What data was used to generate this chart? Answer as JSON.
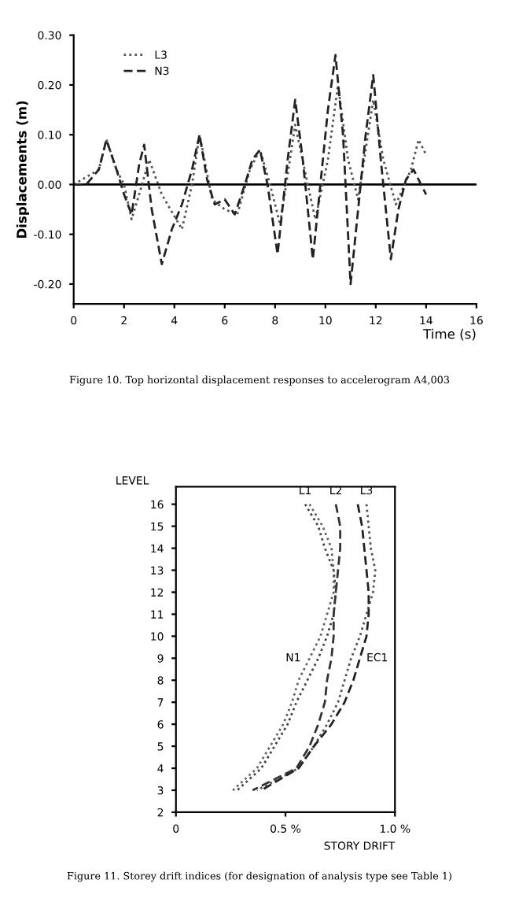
{
  "chart_data": [
    {
      "type": "line",
      "ylabel": "Displacements (m)",
      "xlabel": "Time (s)",
      "xlim": [
        0,
        16
      ],
      "xticks": [
        0,
        2,
        4,
        6,
        8,
        10,
        12,
        14,
        16
      ],
      "ylim": [
        -0.24,
        0.3
      ],
      "yticks": [
        {
          "value": -0.2,
          "label": "-0.20"
        },
        {
          "value": -0.1,
          "label": "-0.10"
        },
        {
          "value": 0,
          "label": "0.00"
        },
        {
          "value": 0.1,
          "label": "0.10"
        },
        {
          "value": 0.2,
          "label": "0.20"
        },
        {
          "value": 0.3,
          "label": "0.30"
        }
      ],
      "legend": "top left",
      "grid": false,
      "ref_lines": [
        {
          "axis": "y",
          "value": 0,
          "color": "#000000",
          "line_style": "solid"
        }
      ],
      "annotations": [
        "Figure 10. Top horizontal displacement responses to accelerogram A4,003"
      ],
      "series": [
        {
          "name": "L3",
          "color": "#555555",
          "line_style": "dotted",
          "x": [
            0,
            1,
            1.3,
            1.7,
            2,
            2.3,
            2.6,
            3,
            3.5,
            4.3,
            4.7,
            5,
            5.5,
            6,
            6.5,
            7,
            7.4,
            7.8,
            8.2,
            8.8,
            9.3,
            9.6,
            10.1,
            10.5,
            10.9,
            11.3,
            11.9,
            12.3,
            12.8,
            13.4,
            13.7,
            14
          ],
          "values": [
            0,
            0.03,
            0.09,
            0.03,
            0,
            -0.07,
            -0.02,
            0.05,
            -0.02,
            -0.09,
            0,
            0.1,
            -0.03,
            -0.05,
            -0.06,
            0.03,
            0.07,
            0,
            -0.08,
            0.12,
            0,
            -0.07,
            0.05,
            0.2,
            0.05,
            -0.03,
            0.17,
            0.05,
            -0.04,
            0.03,
            0.09,
            0.06
          ]
        },
        {
          "name": "N3",
          "color": "#222222",
          "line_style": "dashed",
          "x": [
            0,
            0.5,
            1,
            1.3,
            1.7,
            2,
            2.3,
            2.6,
            2.8,
            3.1,
            3.5,
            3.9,
            4.3,
            4.7,
            5,
            5.3,
            5.6,
            6,
            6.4,
            6.8,
            7.1,
            7.4,
            7.7,
            8.1,
            8.5,
            8.8,
            9.1,
            9.5,
            9.8,
            10.1,
            10.4,
            10.7,
            11,
            11.3,
            11.6,
            11.9,
            12.2,
            12.6,
            12.9,
            13.2,
            13.5,
            13.8,
            14
          ],
          "values": [
            0,
            0,
            0.03,
            0.09,
            0.03,
            -0.02,
            -0.06,
            0.04,
            0.08,
            -0.05,
            -0.16,
            -0.09,
            -0.04,
            0.03,
            0.1,
            0.01,
            -0.04,
            -0.03,
            -0.06,
            0,
            0.05,
            0.07,
            0,
            -0.14,
            0.05,
            0.17,
            0.05,
            -0.15,
            0,
            0.15,
            0.26,
            0.1,
            -0.2,
            -0.05,
            0.1,
            0.22,
            0.05,
            -0.15,
            -0.05,
            0.01,
            0.03,
            0,
            -0.02
          ]
        }
      ]
    },
    {
      "type": "line",
      "ylabel": "LEVEL",
      "xlabel": "STORY DRIFT",
      "xlim": [
        0,
        1.0
      ],
      "xticks": [
        0,
        {
          "value": 0.5,
          "label": "0.5 %"
        },
        {
          "value": 1.0,
          "label": "1.0 %"
        }
      ],
      "ylim": [
        2,
        16.8
      ],
      "yticks": [
        2,
        3,
        4,
        5,
        6,
        7,
        8,
        9,
        10,
        11,
        12,
        13,
        14,
        15,
        16
      ],
      "legend": false,
      "grid": false,
      "annotations": [
        "Figure 11. Storey drift indices (for designation of analysis type see Table 1)"
      ],
      "series": [
        {
          "name": "L1",
          "color": "#444444",
          "line_style": "dotted",
          "x": [
            0.59,
            0.65,
            0.68,
            0.72,
            0.73,
            0.72,
            0.69,
            0.65,
            0.6,
            0.55,
            0.51,
            0.45,
            0.39,
            0.28
          ],
          "values": [
            16,
            15,
            14,
            13,
            12,
            11,
            10,
            9,
            8,
            7,
            6,
            5,
            4,
            3
          ]
        },
        {
          "name": "L2",
          "color": "#333333",
          "line_style": "dashed",
          "x": [
            0.73,
            0.75,
            0.75,
            0.74,
            0.73,
            0.72,
            0.72,
            0.71,
            0.69,
            0.68,
            0.65,
            0.61,
            0.55,
            0.35
          ],
          "values": [
            16,
            15,
            14,
            13,
            12,
            11,
            10,
            9,
            8,
            7,
            6,
            5,
            4,
            3
          ]
        },
        {
          "name": "L3",
          "color": "#555555",
          "line_style": "dotted",
          "x": [
            0.87,
            0.88,
            0.89,
            0.91,
            0.9,
            0.87,
            0.84,
            0.8,
            0.77,
            0.74,
            0.69,
            0.63,
            0.56,
            0.37
          ],
          "values": [
            16,
            15,
            14,
            13,
            12,
            11,
            10,
            9,
            8,
            7,
            6,
            5,
            4,
            3
          ]
        },
        {
          "name": "N1",
          "color": "#666666",
          "line_style": "dotted",
          "x": [
            0.61,
            0.67,
            0.71,
            0.72,
            0.72,
            0.69,
            0.66,
            0.61,
            0.56,
            0.53,
            0.49,
            0.43,
            0.37,
            0.26
          ],
          "values": [
            16,
            15,
            14,
            13,
            12,
            11,
            10,
            9,
            8,
            7,
            6,
            5,
            4,
            3
          ]
        },
        {
          "name": "EC1",
          "color": "#222222",
          "line_style": "dashed",
          "x": [
            0.83,
            0.85,
            0.86,
            0.87,
            0.88,
            0.88,
            0.87,
            0.84,
            0.81,
            0.77,
            0.71,
            0.63,
            0.56,
            0.39
          ],
          "values": [
            16,
            15,
            14,
            13,
            12,
            11,
            10,
            9,
            8,
            7,
            6,
            5,
            4,
            3
          ]
        }
      ]
    }
  ]
}
